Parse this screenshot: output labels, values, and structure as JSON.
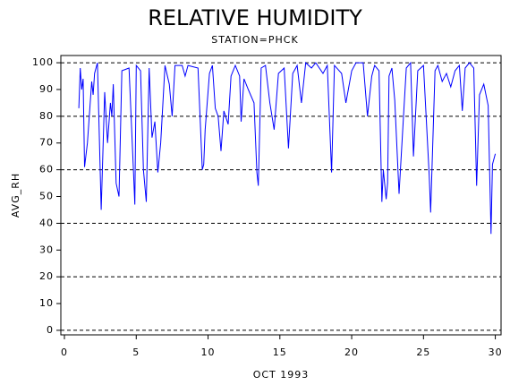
{
  "chart_data": {
    "type": "line",
    "title": "RELATIVE HUMIDITY",
    "subtitle": "STATION=PHCK",
    "y_label": "AVG_RH",
    "x_label": "OCT 1993",
    "xlim": [
      -0.25,
      30.4
    ],
    "xticks": [
      0,
      5,
      10,
      15,
      20,
      25,
      30
    ],
    "ylim": [
      -1.7,
      102.7
    ],
    "yticks": [
      0,
      10,
      20,
      30,
      40,
      50,
      60,
      70,
      80,
      90,
      100
    ],
    "grid_values": [
      0,
      20,
      40,
      60,
      80,
      100
    ],
    "series": [
      {
        "color": "#0000ff",
        "x": [
          1.0,
          1.1,
          1.2,
          1.3,
          1.4,
          1.6,
          1.9,
          2.0,
          2.1,
          2.3,
          2.56,
          2.8,
          3.0,
          3.2,
          3.3,
          3.4,
          3.6,
          3.8,
          4.0,
          4.5,
          4.8,
          4.9,
          5.0,
          5.3,
          5.5,
          5.7,
          5.9,
          6.1,
          6.3,
          6.5,
          6.7,
          7.0,
          7.3,
          7.5,
          7.7,
          8.2,
          8.4,
          8.6,
          9.3,
          9.6,
          9.7,
          9.8,
          10.1,
          10.3,
          10.5,
          10.7,
          10.9,
          11.1,
          11.4,
          11.6,
          11.9,
          12.2,
          12.3,
          12.5,
          12.8,
          13.2,
          13.4,
          13.5,
          13.7,
          14.0,
          14.3,
          14.6,
          14.9,
          15.3,
          15.6,
          15.9,
          16.2,
          16.5,
          16.8,
          17.2,
          17.5,
          18.0,
          18.3,
          18.6,
          18.8,
          19.3,
          19.6,
          20.0,
          20.3,
          20.8,
          21.1,
          21.4,
          21.6,
          21.9,
          22.1,
          22.2,
          22.4,
          22.5,
          22.6,
          22.8,
          23.0,
          23.3,
          23.6,
          23.8,
          24.1,
          24.3,
          24.6,
          25.0,
          25.4,
          25.5,
          25.8,
          26.0,
          26.3,
          26.6,
          26.9,
          27.2,
          27.5,
          27.7,
          27.9,
          28.2,
          28.5,
          28.7,
          28.9,
          29.2,
          29.5,
          29.7,
          29.8,
          30.0
        ],
        "values": [
          83,
          98,
          90,
          94,
          61,
          70,
          93,
          88,
          96,
          100,
          45,
          89,
          70,
          85,
          80,
          92,
          55,
          50,
          97,
          98,
          60,
          47,
          99,
          97,
          60,
          48,
          98,
          72,
          78,
          59,
          70,
          99,
          92,
          80,
          99,
          99,
          95,
          99,
          98,
          60,
          62,
          75,
          96,
          99,
          83,
          80,
          67,
          82,
          77,
          95,
          99,
          95,
          78,
          94,
          90,
          85,
          59,
          54,
          98,
          99,
          85,
          75,
          96,
          98,
          68,
          96,
          99,
          85,
          100,
          98,
          100,
          96,
          99,
          59,
          99,
          96,
          85,
          97,
          100,
          100,
          80,
          95,
          99,
          97,
          48,
          60,
          49,
          55,
          95,
          98,
          86,
          51,
          79,
          98,
          100,
          65,
          97,
          99,
          58,
          44,
          97,
          99,
          93,
          96,
          91,
          97,
          99,
          82,
          98,
          100,
          98,
          54,
          88,
          92,
          84,
          36,
          62,
          66
        ]
      }
    ]
  }
}
